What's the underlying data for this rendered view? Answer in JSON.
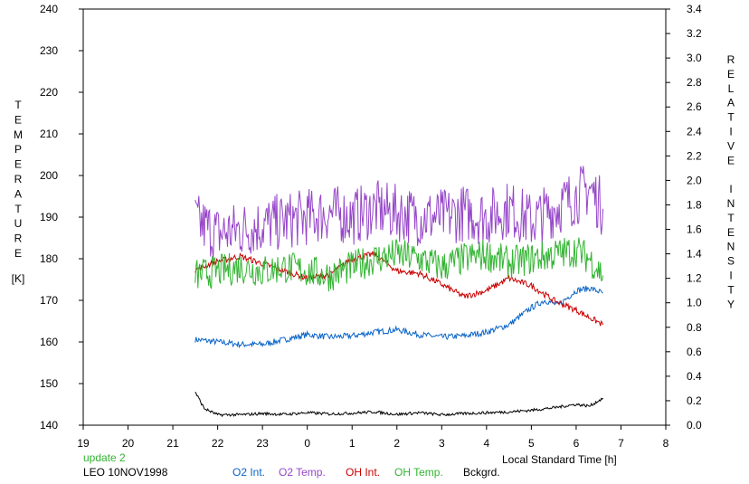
{
  "chart_data": {
    "type": "line",
    "left_axis": {
      "label_letters": [
        "T",
        "E",
        "M",
        "P",
        "E",
        "R",
        "A",
        "T",
        "U",
        "R",
        "E"
      ],
      "unit": "[K]",
      "ylim": [
        140,
        240
      ],
      "ticks": [
        "240",
        "230",
        "220",
        "210",
        "200",
        "190",
        "180",
        "170",
        "160",
        "150",
        "140"
      ]
    },
    "right_axis": {
      "label_letters": [
        "R",
        "E",
        "L",
        "A",
        "T",
        "I",
        "V",
        "E",
        " ",
        "I",
        "N",
        "T",
        "E",
        "N",
        "S",
        "I",
        "T",
        "Y"
      ],
      "ylim": [
        0.0,
        3.4
      ],
      "ticks": [
        "3.4",
        "3.2",
        "3.0",
        "2.8",
        "2.6",
        "2.4",
        "2.2",
        "2.0",
        "1.8",
        "1.6",
        "1.4",
        "1.2",
        "1.0",
        "0.8",
        "0.6",
        "0.4",
        "0.2",
        "0.0"
      ]
    },
    "x_axis": {
      "label": "Local Standard Time [h]",
      "ticks": [
        "19",
        "20",
        "21",
        "22",
        "23",
        "0",
        "1",
        "2",
        "3",
        "4",
        "5",
        "6",
        "7",
        "8"
      ],
      "xlim": [
        19,
        32
      ]
    },
    "status_text": "update 2",
    "station_text": "LEO 10NOV1998",
    "grid": false,
    "series": [
      {
        "name": "O2 Int.",
        "axis": "right",
        "color": "#0a64c8",
        "x": [
          21.5,
          22,
          22.5,
          23,
          23.5,
          24,
          24.5,
          25,
          25.5,
          26,
          26.5,
          27,
          27.5,
          28,
          28.5,
          29,
          29.3,
          29.6,
          30,
          30.3,
          30.6
        ],
        "y": [
          0.7,
          0.68,
          0.66,
          0.66,
          0.7,
          0.74,
          0.72,
          0.73,
          0.76,
          0.78,
          0.74,
          0.72,
          0.73,
          0.76,
          0.82,
          0.96,
          1.02,
          0.98,
          1.1,
          1.12,
          1.08
        ]
      },
      {
        "name": "O2 Temp.",
        "axis": "left",
        "color": "#9646c8",
        "x": [
          21.5,
          22,
          22.5,
          23,
          23.5,
          24,
          24.5,
          25,
          25.5,
          26,
          26.5,
          27,
          27.5,
          28,
          28.5,
          29,
          29.5,
          30,
          30.3,
          30.6
        ],
        "y": [
          189,
          186,
          187,
          188,
          189,
          190,
          191,
          190,
          192,
          191,
          190,
          190,
          191,
          190,
          192,
          189,
          192,
          195,
          197,
          192
        ]
      },
      {
        "name": "OH Int.",
        "axis": "right",
        "color": "#c80000",
        "x": [
          21.5,
          22,
          22.5,
          23,
          23.5,
          24,
          24.5,
          25,
          25.5,
          26,
          26.5,
          27,
          27.5,
          28,
          28.5,
          29,
          29.5,
          30,
          30.3,
          30.6
        ],
        "y": [
          1.27,
          1.34,
          1.38,
          1.32,
          1.26,
          1.2,
          1.23,
          1.36,
          1.4,
          1.26,
          1.24,
          1.15,
          1.05,
          1.1,
          1.2,
          1.14,
          1.02,
          0.94,
          0.88,
          0.82
        ]
      },
      {
        "name": "OH Temp.",
        "axis": "left",
        "color": "#32b432",
        "x": [
          21.5,
          22,
          22.5,
          23,
          23.5,
          24,
          24.5,
          25,
          25.5,
          26,
          26.5,
          27,
          27.5,
          28,
          28.5,
          29,
          29.5,
          30,
          30.3,
          30.6
        ],
        "y": [
          176,
          177,
          178,
          177,
          178,
          177,
          176,
          178,
          180,
          181,
          180,
          178,
          180,
          181,
          179,
          180,
          181,
          182,
          180,
          176
        ]
      },
      {
        "name": "Bckgrd.",
        "axis": "left",
        "color": "#000000",
        "x": [
          21.5,
          21.7,
          22,
          22.5,
          23,
          23.5,
          24,
          24.5,
          25,
          25.5,
          26,
          26.5,
          27,
          27.5,
          28,
          28.5,
          29,
          29.5,
          30,
          30.3,
          30.6
        ],
        "y": [
          148,
          144,
          142.5,
          142.5,
          142.8,
          142.6,
          143,
          142.7,
          142.9,
          143.2,
          142.6,
          143,
          142.5,
          142.8,
          143,
          143.2,
          143.6,
          144.2,
          145,
          144.6,
          146.5
        ]
      }
    ]
  }
}
